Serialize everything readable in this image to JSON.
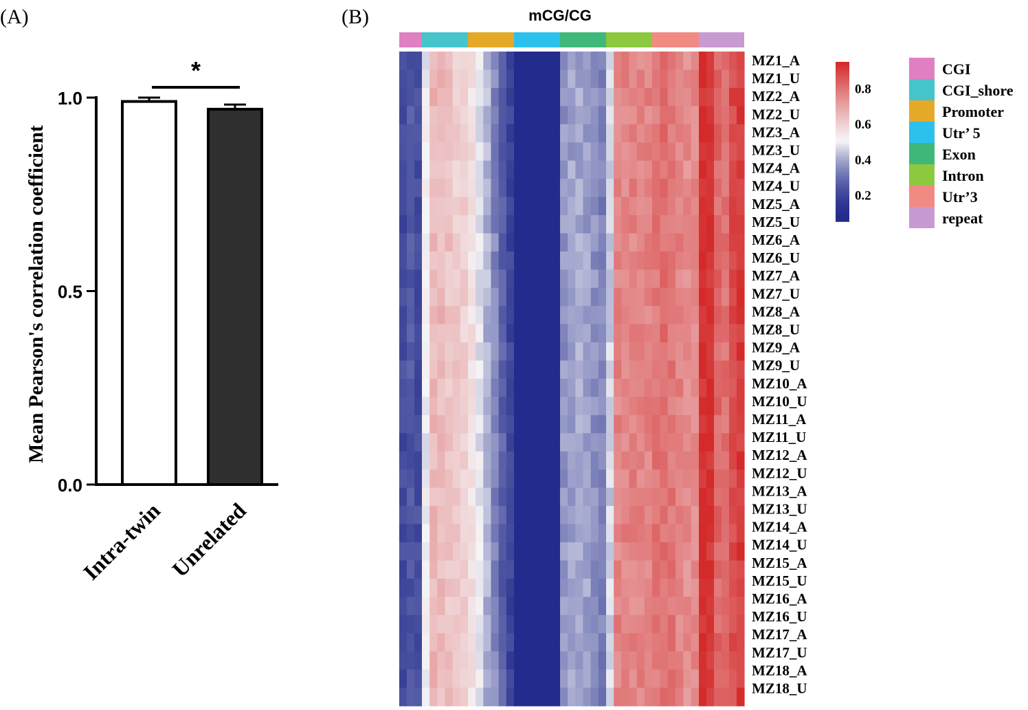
{
  "panels": {
    "a_label": "(A)",
    "b_label": "(B)"
  },
  "chart_data": [
    {
      "type": "bar",
      "panel": "A",
      "categories": [
        "Intra-twin",
        "Unrelated"
      ],
      "values": [
        0.99,
        0.97
      ],
      "errors": [
        0.01,
        0.012
      ],
      "bar_colors": [
        "#ffffff",
        "#2f2f2f"
      ],
      "ylabel": "Mean Pearson's correlation coefficient",
      "xlabel": "",
      "ylim": [
        0,
        1.0
      ],
      "yticks": [
        "0.0",
        "0.5",
        "1.0"
      ],
      "yticks_values": [
        0.0,
        0.5,
        1.0
      ],
      "significance": {
        "label": "*",
        "between": [
          "Intra-twin",
          "Unrelated"
        ]
      }
    },
    {
      "type": "heatmap",
      "panel": "B",
      "title": "mCG/CG",
      "rows": [
        "MZ1_A",
        "MZ1_U",
        "MZ2_A",
        "MZ2_U",
        "MZ3_A",
        "MZ3_U",
        "MZ4_A",
        "MZ4_U",
        "MZ5_A",
        "MZ5_U",
        "MZ6_A",
        "MZ6_U",
        "MZ7_A",
        "MZ7_U",
        "MZ8_A",
        "MZ8_U",
        "MZ9_A",
        "MZ9_U",
        "MZ10_A",
        "MZ10_U",
        "MZ11_A",
        "MZ11_U",
        "MZ12_A",
        "MZ12_U",
        "MZ13_A",
        "MZ13_U",
        "MZ14_A",
        "MZ14_U",
        "MZ15_A",
        "MZ15_U",
        "MZ16_A",
        "MZ16_U",
        "MZ17_A",
        "MZ17_U",
        "MZ18_A",
        "MZ18_U"
      ],
      "annotation": [
        {
          "name": "CGI",
          "color": "#e07fc1"
        },
        {
          "name": "CGI_shore",
          "color": "#45c4cc"
        },
        {
          "name": "Promoter",
          "color": "#e5a928"
        },
        {
          "name": "Utr’ 5",
          "color": "#2cc0ec"
        },
        {
          "name": "Exon",
          "color": "#3fb87a"
        },
        {
          "name": "Intron",
          "color": "#8cc93f"
        },
        {
          "name": "Utr’3",
          "color": "#f28a84"
        },
        {
          "name": "repeat",
          "color": "#c79ad2"
        }
      ],
      "region_mean_values": [
        0.25,
        0.62,
        0.4,
        0.05,
        0.38,
        0.75,
        0.78,
        0.92
      ],
      "colorbar": {
        "ticks": [
          "0.2",
          "0.4",
          "0.6",
          "0.8"
        ],
        "ticks_values": [
          0.2,
          0.4,
          0.6,
          0.8
        ],
        "range": [
          0.05,
          0.95
        ],
        "colors": {
          "low": "#232c8c",
          "mid": "#f5f5f7",
          "high": "#d42a2a"
        }
      }
    }
  ]
}
